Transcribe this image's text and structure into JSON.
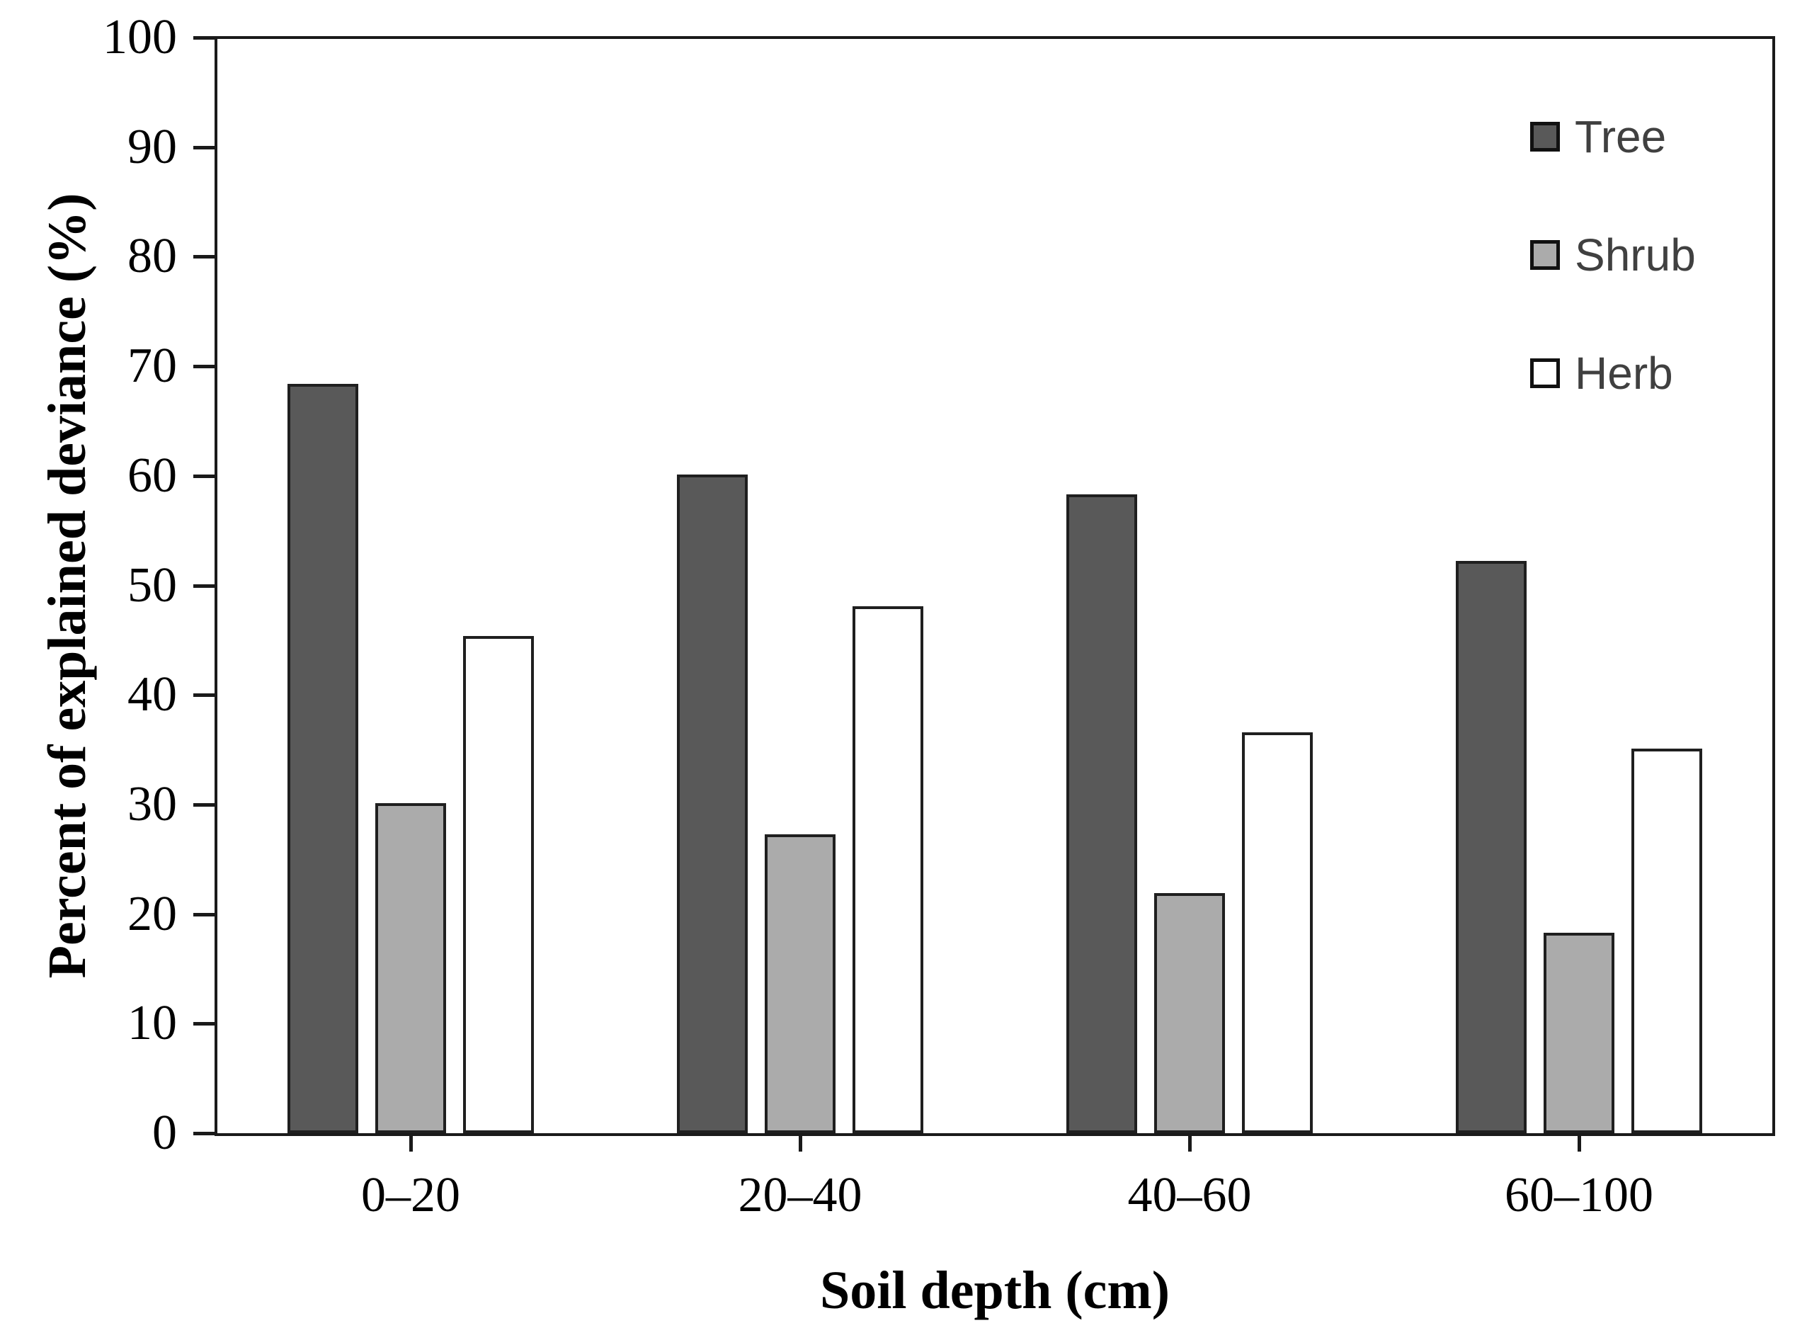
{
  "chart_data": {
    "type": "bar",
    "title": "",
    "xlabel": "Soil depth (cm)",
    "ylabel": "Percent of explained deviance (%)",
    "categories": [
      "0–20",
      "20–40",
      "40–60",
      "60–100"
    ],
    "series": [
      {
        "name": "Tree",
        "color": "#595959",
        "values": [
          68.4,
          60.1,
          58.3,
          52.2
        ]
      },
      {
        "name": "Shrub",
        "color": "#ababab",
        "values": [
          30.1,
          27.3,
          21.9,
          18.3
        ]
      },
      {
        "name": "Herb",
        "color": "#ffffff",
        "values": [
          45.4,
          48.1,
          36.6,
          35.1
        ]
      }
    ],
    "ylim": [
      0,
      100
    ],
    "yticks": [
      0,
      10,
      20,
      30,
      40,
      50,
      60,
      70,
      80,
      90,
      100
    ],
    "grid": false,
    "legend_position": "top-right",
    "legend_labels": [
      "Tree",
      "Shrub",
      "Herb"
    ],
    "bar_border_color": "#1f1f1f",
    "frame_color": "#1a1a1a"
  }
}
